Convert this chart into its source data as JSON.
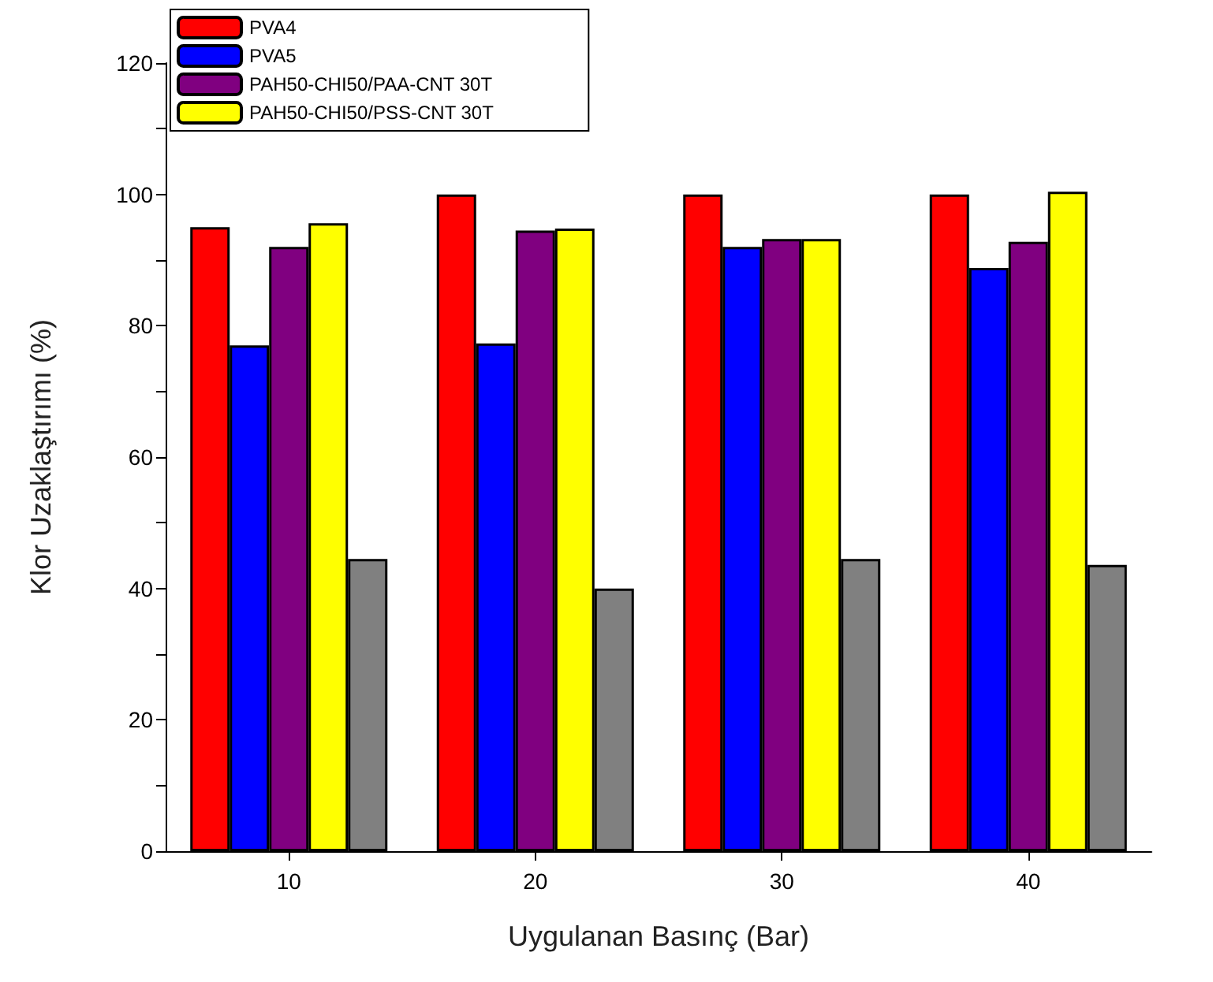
{
  "chart_data": {
    "type": "bar",
    "xlabel": "Uygulanan Basınç (Bar)",
    "ylabel": "Klor Uzaklaştırımı (%)",
    "categories": [
      "10",
      "20",
      "30",
      "40"
    ],
    "series": [
      {
        "name": "PVA4",
        "color": "#ff0000",
        "values": [
          95,
          100,
          100,
          100
        ]
      },
      {
        "name": "PVA5",
        "color": "#0000ff",
        "values": [
          77,
          77.3,
          92,
          88.8
        ]
      },
      {
        "name": "PAH50-CHI50/PAA-CNT 30T",
        "color": "#800080",
        "values": [
          92,
          94.5,
          93.2,
          92.8
        ]
      },
      {
        "name": "PAH50-CHI50/PSS-CNT 30T",
        "color": "#ffff00",
        "values": [
          95.6,
          94.8,
          93.2,
          100.4
        ]
      },
      {
        "color": "#808080",
        "values": [
          44.5,
          40,
          44.5,
          43.6
        ]
      }
    ],
    "ylim": [
      0,
      120
    ],
    "yticks": [
      0,
      {
        "value": 10,
        "label": null
      },
      20,
      {
        "value": 30,
        "label": null
      },
      40,
      {
        "value": 50,
        "label": null
      },
      60,
      {
        "value": 70,
        "label": null
      },
      80,
      {
        "value": 90,
        "label": null
      },
      100,
      {
        "value": 110,
        "label": null
      },
      120
    ],
    "grid": false,
    "legend": "top left"
  }
}
